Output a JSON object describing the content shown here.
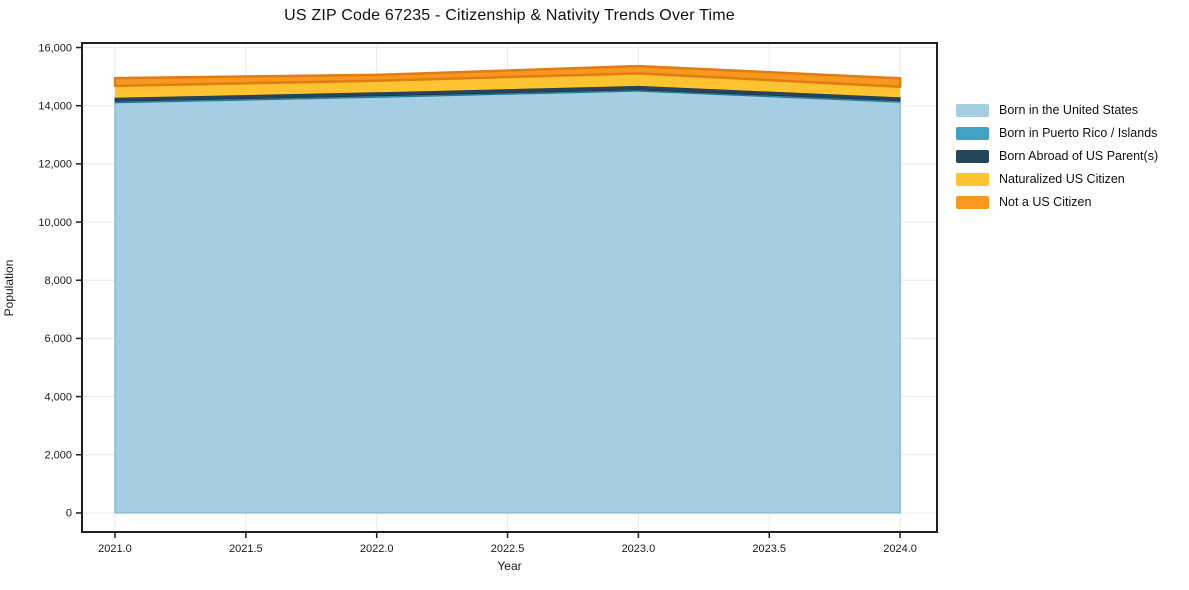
{
  "page": {
    "title": "US ZIP Code 67235 - Citizenship & Nativity Trends Over Time"
  },
  "chart_data": {
    "type": "area",
    "stacked": true,
    "title": "US ZIP Code 67235 - Citizenship & Nativity Trends Over Time",
    "xlabel": "Year",
    "ylabel": "Population",
    "x": [
      2021,
      2022,
      2023,
      2024
    ],
    "series": [
      {
        "name": "Born in the United States",
        "color": "#a6cee3",
        "edge": "#8cbcd6",
        "edge_width": 1.5,
        "values": [
          14100,
          14290,
          14500,
          14120
        ]
      },
      {
        "name": "Born in Puerto Rico / Islands",
        "color": "#41a2c6",
        "edge": "#20758f",
        "edge_width": 1,
        "values": [
          50,
          50,
          50,
          50
        ]
      },
      {
        "name": "Born Abroad of US Parent(s)",
        "color": "#24465c",
        "edge": "#1c3a4e",
        "edge_width": 1,
        "values": [
          120,
          120,
          130,
          120
        ]
      },
      {
        "name": "Naturalized US Citizen",
        "color": "#fdc330",
        "edge": "",
        "edge_width": 0,
        "values": [
          410,
          400,
          430,
          360
        ]
      },
      {
        "name": "Not a US Citizen",
        "color": "#f8981f",
        "edge": "#e07c12",
        "edge_width": 2.5,
        "values": [
          270,
          200,
          250,
          290
        ]
      }
    ],
    "xlim": [
      2020.874,
      2024.141
    ],
    "ylim": [
      -655,
      16155
    ],
    "xticks": {
      "values": [
        2021.0,
        2021.5,
        2022.0,
        2022.5,
        2023.0,
        2023.5,
        2024.0
      ],
      "labels": [
        "2021.0",
        "2021.5",
        "2022.0",
        "2022.5",
        "2023.0",
        "2023.5",
        "2024.0"
      ]
    },
    "yticks": {
      "values": [
        0,
        2000,
        4000,
        6000,
        8000,
        10000,
        12000,
        14000,
        16000
      ],
      "labels": [
        "0",
        "2,000",
        "4,000",
        "6,000",
        "8,000",
        "10,000",
        "12,000",
        "14,000",
        "16,000"
      ]
    },
    "grid": true,
    "grid_color": "#eaeaea",
    "border_color": "#1f1f1f",
    "legend_position": "right"
  }
}
